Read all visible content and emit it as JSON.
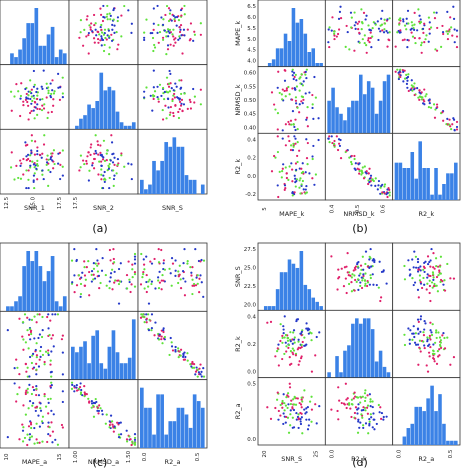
{
  "figure": {
    "panel_tags": [
      "(a)",
      "(b)",
      "(c)",
      "(d)"
    ]
  },
  "colors": {
    "hist": "#3b82e6",
    "red": "#e0206a",
    "green": "#5ee23a",
    "blue": "#2438c8"
  },
  "chart_data": [
    {
      "type": "scatter",
      "subtype": "scatter_matrix",
      "tag": "(a)",
      "variables": [
        "SNR_1",
        "SNR_2",
        "SNR_S"
      ],
      "range_columns": [
        [
          10,
          19
        ],
        [
          10,
          19
        ],
        [
          10,
          19
        ]
      ],
      "range_rows": [
        [
          0,
          22
        ],
        [
          10,
          19
        ],
        [
          10,
          19
        ]
      ],
      "x_tick_labels": [
        [
          "12.5",
          "15.0",
          "17.5"
        ],
        [
          "17.5"
        ],
        []
      ],
      "y_tick_labels": [
        [
          "0",
          "2",
          "4",
          "6",
          "8",
          "10",
          "12",
          "14",
          "16",
          "18"
        ],
        [],
        []
      ],
      "diag_peak_column": 0.75,
      "relations": [
        [
          null,
          {
            "type": "cloud",
            "r": 0.0
          },
          {
            "type": "cloud",
            "r": 0.1
          }
        ],
        [
          {
            "type": "cloud",
            "r": 0.0
          },
          null,
          {
            "type": "cloud",
            "r": 0.1
          }
        ],
        [
          {
            "type": "cloud",
            "r": 0.15
          },
          {
            "type": "cloud",
            "r": 0.1
          },
          null
        ]
      ]
    },
    {
      "type": "scatter",
      "subtype": "scatter_matrix",
      "tag": "(b)",
      "variables": [
        "MAPE_k",
        "NRMSD_k",
        "R2_k"
      ],
      "range_columns": [
        [
          4.0,
          6.6
        ],
        [
          0.35,
          0.62
        ],
        [
          -0.25,
          0.55
        ]
      ],
      "range_rows": [
        [
          4.0,
          6.6
        ],
        [
          0.35,
          0.62
        ],
        [
          -0.25,
          0.55
        ]
      ],
      "x_tick_labels": [
        [
          "5"
        ],
        [
          "0.4",
          "0.5",
          "0.6"
        ],
        []
      ],
      "y_tick_labels": [
        [
          "4.0",
          "4.5",
          "5.0",
          "5.5",
          "6.0",
          "6.5"
        ],
        [
          "0.40",
          "0.45",
          "0.50",
          "0.55",
          "0.60"
        ],
        [
          "-0.2",
          "0.0",
          "0.2",
          "0.4"
        ]
      ],
      "diag_peak_column": 0.2,
      "relations": [
        [
          null,
          {
            "type": "line",
            "r": 0.95
          },
          {
            "type": "line",
            "r": -0.85
          }
        ],
        [
          {
            "type": "line",
            "r": 0.95
          },
          null,
          {
            "type": "line",
            "r": -0.99
          }
        ],
        [
          {
            "type": "line",
            "r": -0.85
          },
          {
            "type": "line",
            "r": -0.99
          },
          null
        ]
      ]
    },
    {
      "type": "scatter",
      "subtype": "scatter_matrix",
      "tag": "(c)",
      "variables": [
        "MAPE_a",
        "NRMSD_a",
        "R2_a"
      ],
      "range_columns": [
        [
          9,
          20
        ],
        [
          0.9,
          1.55
        ],
        [
          -0.3,
          0.75
        ]
      ],
      "range_rows": [
        [
          9,
          20
        ],
        [
          0.9,
          1.55
        ],
        [
          -0.3,
          0.75
        ]
      ],
      "x_tick_labels": [
        [
          "10",
          "15"
        ],
        [
          "1.00",
          "1.50"
        ],
        [
          "0.0",
          "0.5"
        ]
      ],
      "y_tick_labels": [
        [],
        [],
        []
      ],
      "diag_peak_column": 0.1,
      "relations": [
        [
          null,
          {
            "type": "line",
            "r": 0.92
          },
          {
            "type": "line",
            "r": -0.9
          }
        ],
        [
          {
            "type": "line",
            "r": 0.92
          },
          null,
          {
            "type": "line",
            "r": -0.99
          }
        ],
        [
          {
            "type": "line",
            "r": -0.9
          },
          {
            "type": "line",
            "r": -0.99
          },
          null
        ]
      ]
    },
    {
      "type": "scatter",
      "subtype": "scatter_matrix",
      "tag": "(d)",
      "variables": [
        "SNR_S",
        "R2_k",
        "R2_a"
      ],
      "range_columns": [
        [
          19,
          29
        ],
        [
          -0.3,
          0.6
        ],
        [
          -0.3,
          0.75
        ]
      ],
      "range_rows": [
        [
          19,
          29
        ],
        [
          -0.3,
          0.6
        ],
        [
          -0.3,
          0.75
        ]
      ],
      "x_tick_labels": [
        [
          "20",
          "25"
        ],
        [
          "0.0"
        ],
        [
          "0.0",
          "0.5"
        ]
      ],
      "y_tick_labels": [
        [
          "20.0",
          "22.5",
          "25.0",
          "27.5"
        ],
        [
          "0.0",
          "0.2",
          "0.4"
        ],
        [
          "0.0",
          "0.5"
        ]
      ],
      "diag_peak_column": 0.45,
      "relations": [
        [
          null,
          {
            "type": "cloud",
            "r": 0.1
          },
          {
            "type": "cloud",
            "r": 0.1
          }
        ],
        [
          {
            "type": "cloud",
            "r": 0.1
          },
          null,
          {
            "type": "cloud",
            "r": 0.2
          }
        ],
        [
          {
            "type": "cloud",
            "r": 0.1
          },
          {
            "type": "cloud",
            "r": 0.2
          },
          null
        ]
      ]
    }
  ]
}
